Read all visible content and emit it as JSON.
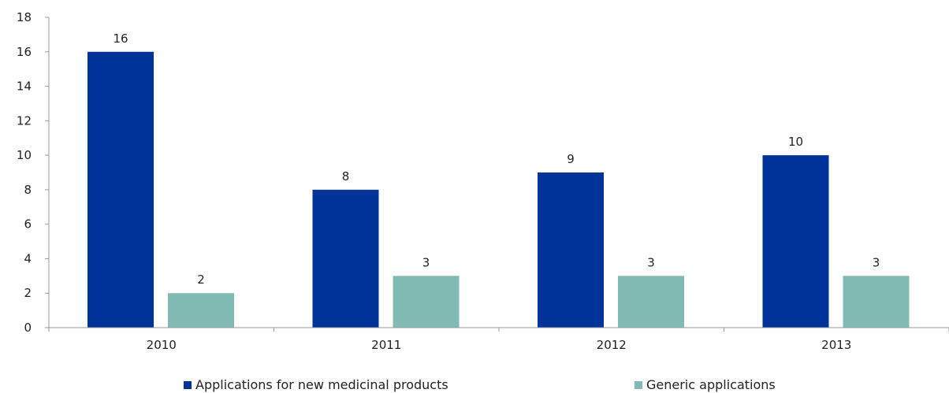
{
  "chart_data": {
    "type": "bar",
    "categories": [
      "2010",
      "2011",
      "2012",
      "2013"
    ],
    "series": [
      {
        "name": "Applications for new medicinal products",
        "values": [
          16,
          8,
          9,
          10
        ],
        "color": "#003399"
      },
      {
        "name": "Generic applications",
        "values": [
          2,
          3,
          3,
          3
        ],
        "color": "#7fbbb3"
      }
    ],
    "ylim": [
      0,
      18
    ],
    "yticks": [
      0,
      2,
      4,
      6,
      8,
      10,
      12,
      14,
      16,
      18
    ],
    "grid": false,
    "legend_position": "bottom",
    "data_labels": true
  }
}
